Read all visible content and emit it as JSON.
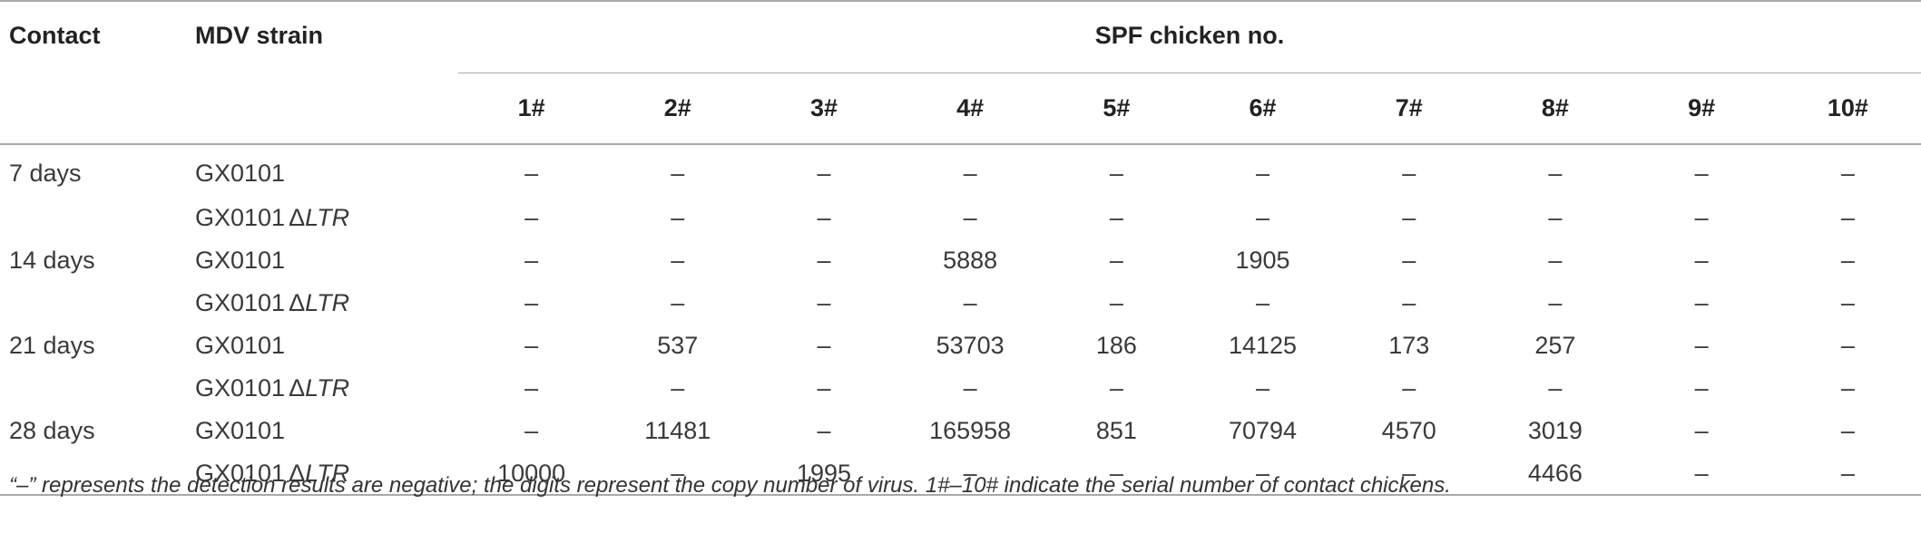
{
  "table": {
    "headers": {
      "contact": "Contact",
      "strain": "MDV strain",
      "group": "SPF chicken no.",
      "chickens": [
        "1#",
        "2#",
        "3#",
        "4#",
        "5#",
        "6#",
        "7#",
        "8#",
        "9#",
        "10#"
      ]
    },
    "rows": [
      {
        "contact": "7 days",
        "strain_base": "GX0101",
        "strain_delta": "",
        "strain_suffix": "",
        "values": [
          "–",
          "–",
          "–",
          "–",
          "–",
          "–",
          "–",
          "–",
          "–",
          "–"
        ]
      },
      {
        "contact": "",
        "strain_base": "GX0101",
        "strain_delta": "Δ",
        "strain_suffix": "LTR",
        "values": [
          "–",
          "–",
          "–",
          "–",
          "–",
          "–",
          "–",
          "–",
          "–",
          "–"
        ]
      },
      {
        "contact": "14 days",
        "strain_base": "GX0101",
        "strain_delta": "",
        "strain_suffix": "",
        "values": [
          "–",
          "–",
          "–",
          "5888",
          "–",
          "1905",
          "–",
          "–",
          "–",
          "–"
        ]
      },
      {
        "contact": "",
        "strain_base": "GX0101",
        "strain_delta": "Δ",
        "strain_suffix": "LTR",
        "values": [
          "–",
          "–",
          "–",
          "–",
          "–",
          "–",
          "–",
          "–",
          "–",
          "–"
        ]
      },
      {
        "contact": "21 days",
        "strain_base": "GX0101",
        "strain_delta": "",
        "strain_suffix": "",
        "values": [
          "–",
          "537",
          "–",
          "53703",
          "186",
          "14125",
          "173",
          "257",
          "–",
          "–"
        ]
      },
      {
        "contact": "",
        "strain_base": "GX0101",
        "strain_delta": "Δ",
        "strain_suffix": "LTR",
        "values": [
          "–",
          "–",
          "–",
          "–",
          "–",
          "–",
          "–",
          "–",
          "–",
          "–"
        ]
      },
      {
        "contact": "28 days",
        "strain_base": "GX0101",
        "strain_delta": "",
        "strain_suffix": "",
        "values": [
          "–",
          "11481",
          "–",
          "165958",
          "851",
          "70794",
          "4570",
          "3019",
          "–",
          "–"
        ]
      },
      {
        "contact": "",
        "strain_base": "GX0101",
        "strain_delta": "Δ",
        "strain_suffix": "LTR",
        "values": [
          "10000",
          "–",
          "1995",
          "–",
          "–",
          "–",
          "–",
          "4466",
          "–",
          "–"
        ]
      }
    ]
  },
  "footnote": "“–” represents the detection results are negative; the digits represent the copy number of virus. 1#–10# indicate the serial number of contact chickens."
}
